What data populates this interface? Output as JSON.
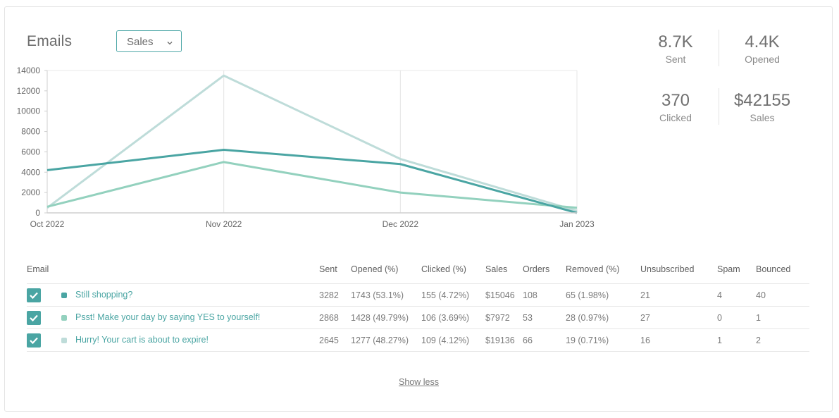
{
  "header": {
    "title": "Emails",
    "dropdown_value": "Sales"
  },
  "stats": [
    {
      "value": "8.7K",
      "label": "Sent"
    },
    {
      "value": "4.4K",
      "label": "Opened"
    },
    {
      "value": "370",
      "label": "Clicked"
    },
    {
      "value": "$42155",
      "label": "Sales"
    }
  ],
  "chart_data": {
    "type": "line",
    "x": [
      "Oct 2022",
      "Nov 2022",
      "Dec 2022",
      "Jan 2023"
    ],
    "yticks": [
      "0",
      "2000",
      "4000",
      "6000",
      "8000",
      "10000",
      "12000",
      "14000"
    ],
    "ylim": [
      0,
      14000
    ],
    "grid": "vertical",
    "legend": "none",
    "series": [
      {
        "color": "#4aa5a3",
        "values": [
          4200,
          6200,
          4800,
          0
        ]
      },
      {
        "color": "#93d1be",
        "values": [
          600,
          5000,
          2000,
          500
        ]
      },
      {
        "color": "#bedcd9",
        "values": [
          500,
          13500,
          5300,
          200
        ]
      }
    ]
  },
  "table": {
    "headers": [
      "Email",
      "Sent",
      "Opened (%)",
      "Clicked (%)",
      "Sales",
      "Orders",
      "Removed (%)",
      "Unsubscribed",
      "Spam",
      "Bounced"
    ],
    "rows": [
      {
        "color": "#4aa5a3",
        "name": "Still shopping?",
        "sent": "3282",
        "opened": "1743 (53.1%)",
        "clicked": "155 (4.72%)",
        "sales": "$15046",
        "orders": "108",
        "removed": "65 (1.98%)",
        "unsubscribed": "21",
        "spam": "4",
        "bounced": "40"
      },
      {
        "color": "#93d1be",
        "name": "Psst! Make your day by saying YES to yourself!",
        "sent": "2868",
        "opened": "1428 (49.79%)",
        "clicked": "106 (3.69%)",
        "sales": "$7972",
        "orders": "53",
        "removed": "28 (0.97%)",
        "unsubscribed": "27",
        "spam": "0",
        "bounced": "1"
      },
      {
        "color": "#bedcd9",
        "name": "Hurry! Your cart is about to expire!",
        "sent": "2645",
        "opened": "1277 (48.27%)",
        "clicked": "109 (4.12%)",
        "sales": "$19136",
        "orders": "66",
        "removed": "19 (0.71%)",
        "unsubscribed": "16",
        "spam": "1",
        "bounced": "2"
      }
    ]
  },
  "footer": {
    "show_less": "Show less"
  }
}
